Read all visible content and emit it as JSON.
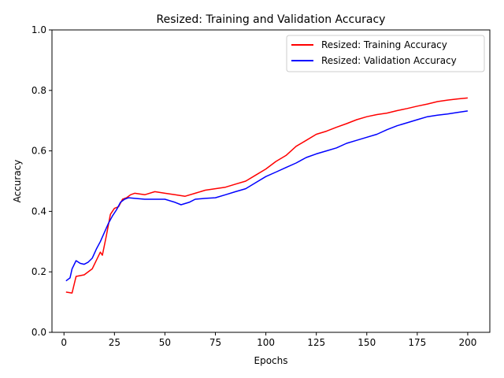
{
  "chart_data": {
    "type": "line",
    "title": "Resized: Training and Validation Accuracy",
    "xlabel": "Epochs",
    "ylabel": "Accuracy",
    "xlim": [
      -5.95,
      210.95
    ],
    "ylim": [
      0.0,
      1.0
    ],
    "xticks": [
      0,
      25,
      50,
      75,
      100,
      125,
      150,
      175,
      200
    ],
    "yticks": [
      0.0,
      0.2,
      0.4,
      0.6,
      0.8,
      1.0
    ],
    "xtick_labels": [
      "0",
      "25",
      "50",
      "75",
      "100",
      "125",
      "150",
      "175",
      "200"
    ],
    "ytick_labels": [
      "0.0",
      "0.2",
      "0.4",
      "0.6",
      "0.8",
      "1.0"
    ],
    "grid": false,
    "legend_position": "top-right",
    "series": [
      {
        "name": "Resized: Training Accuracy",
        "color": "#ff0000",
        "points": [
          [
            1,
            0.133
          ],
          [
            4,
            0.13
          ],
          [
            6,
            0.185
          ],
          [
            10,
            0.19
          ],
          [
            14,
            0.21
          ],
          [
            18,
            0.265
          ],
          [
            19,
            0.255
          ],
          [
            21,
            0.32
          ],
          [
            23,
            0.39
          ],
          [
            25,
            0.41
          ],
          [
            27,
            0.415
          ],
          [
            29,
            0.44
          ],
          [
            31,
            0.445
          ],
          [
            33,
            0.455
          ],
          [
            35,
            0.46
          ],
          [
            40,
            0.455
          ],
          [
            45,
            0.465
          ],
          [
            50,
            0.46
          ],
          [
            55,
            0.455
          ],
          [
            60,
            0.45
          ],
          [
            65,
            0.46
          ],
          [
            70,
            0.47
          ],
          [
            75,
            0.475
          ],
          [
            80,
            0.48
          ],
          [
            85,
            0.49
          ],
          [
            90,
            0.5
          ],
          [
            95,
            0.52
          ],
          [
            100,
            0.54
          ],
          [
            105,
            0.565
          ],
          [
            110,
            0.585
          ],
          [
            115,
            0.615
          ],
          [
            120,
            0.635
          ],
          [
            125,
            0.655
          ],
          [
            130,
            0.665
          ],
          [
            135,
            0.678
          ],
          [
            140,
            0.69
          ],
          [
            145,
            0.703
          ],
          [
            150,
            0.713
          ],
          [
            155,
            0.72
          ],
          [
            160,
            0.725
          ],
          [
            165,
            0.733
          ],
          [
            170,
            0.74
          ],
          [
            175,
            0.748
          ],
          [
            180,
            0.755
          ],
          [
            185,
            0.763
          ],
          [
            190,
            0.768
          ],
          [
            195,
            0.772
          ],
          [
            200,
            0.775
          ]
        ]
      },
      {
        "name": "Resized: Validation Accuracy",
        "color": "#0000ff",
        "points": [
          [
            1,
            0.17
          ],
          [
            3,
            0.18
          ],
          [
            4,
            0.21
          ],
          [
            6,
            0.237
          ],
          [
            8,
            0.228
          ],
          [
            10,
            0.225
          ],
          [
            12,
            0.232
          ],
          [
            14,
            0.245
          ],
          [
            16,
            0.275
          ],
          [
            18,
            0.3
          ],
          [
            20,
            0.33
          ],
          [
            22,
            0.36
          ],
          [
            24,
            0.385
          ],
          [
            26,
            0.405
          ],
          [
            28,
            0.43
          ],
          [
            30,
            0.44
          ],
          [
            32,
            0.445
          ],
          [
            35,
            0.443
          ],
          [
            40,
            0.44
          ],
          [
            45,
            0.44
          ],
          [
            50,
            0.44
          ],
          [
            55,
            0.43
          ],
          [
            58,
            0.422
          ],
          [
            62,
            0.43
          ],
          [
            65,
            0.44
          ],
          [
            70,
            0.443
          ],
          [
            75,
            0.445
          ],
          [
            80,
            0.455
          ],
          [
            85,
            0.465
          ],
          [
            90,
            0.475
          ],
          [
            95,
            0.495
          ],
          [
            100,
            0.515
          ],
          [
            105,
            0.53
          ],
          [
            110,
            0.545
          ],
          [
            115,
            0.56
          ],
          [
            120,
            0.578
          ],
          [
            125,
            0.59
          ],
          [
            130,
            0.6
          ],
          [
            135,
            0.61
          ],
          [
            140,
            0.625
          ],
          [
            145,
            0.635
          ],
          [
            150,
            0.645
          ],
          [
            155,
            0.655
          ],
          [
            160,
            0.67
          ],
          [
            165,
            0.683
          ],
          [
            170,
            0.693
          ],
          [
            175,
            0.703
          ],
          [
            180,
            0.713
          ],
          [
            185,
            0.718
          ],
          [
            190,
            0.722
          ],
          [
            195,
            0.727
          ],
          [
            200,
            0.732
          ]
        ]
      }
    ]
  }
}
